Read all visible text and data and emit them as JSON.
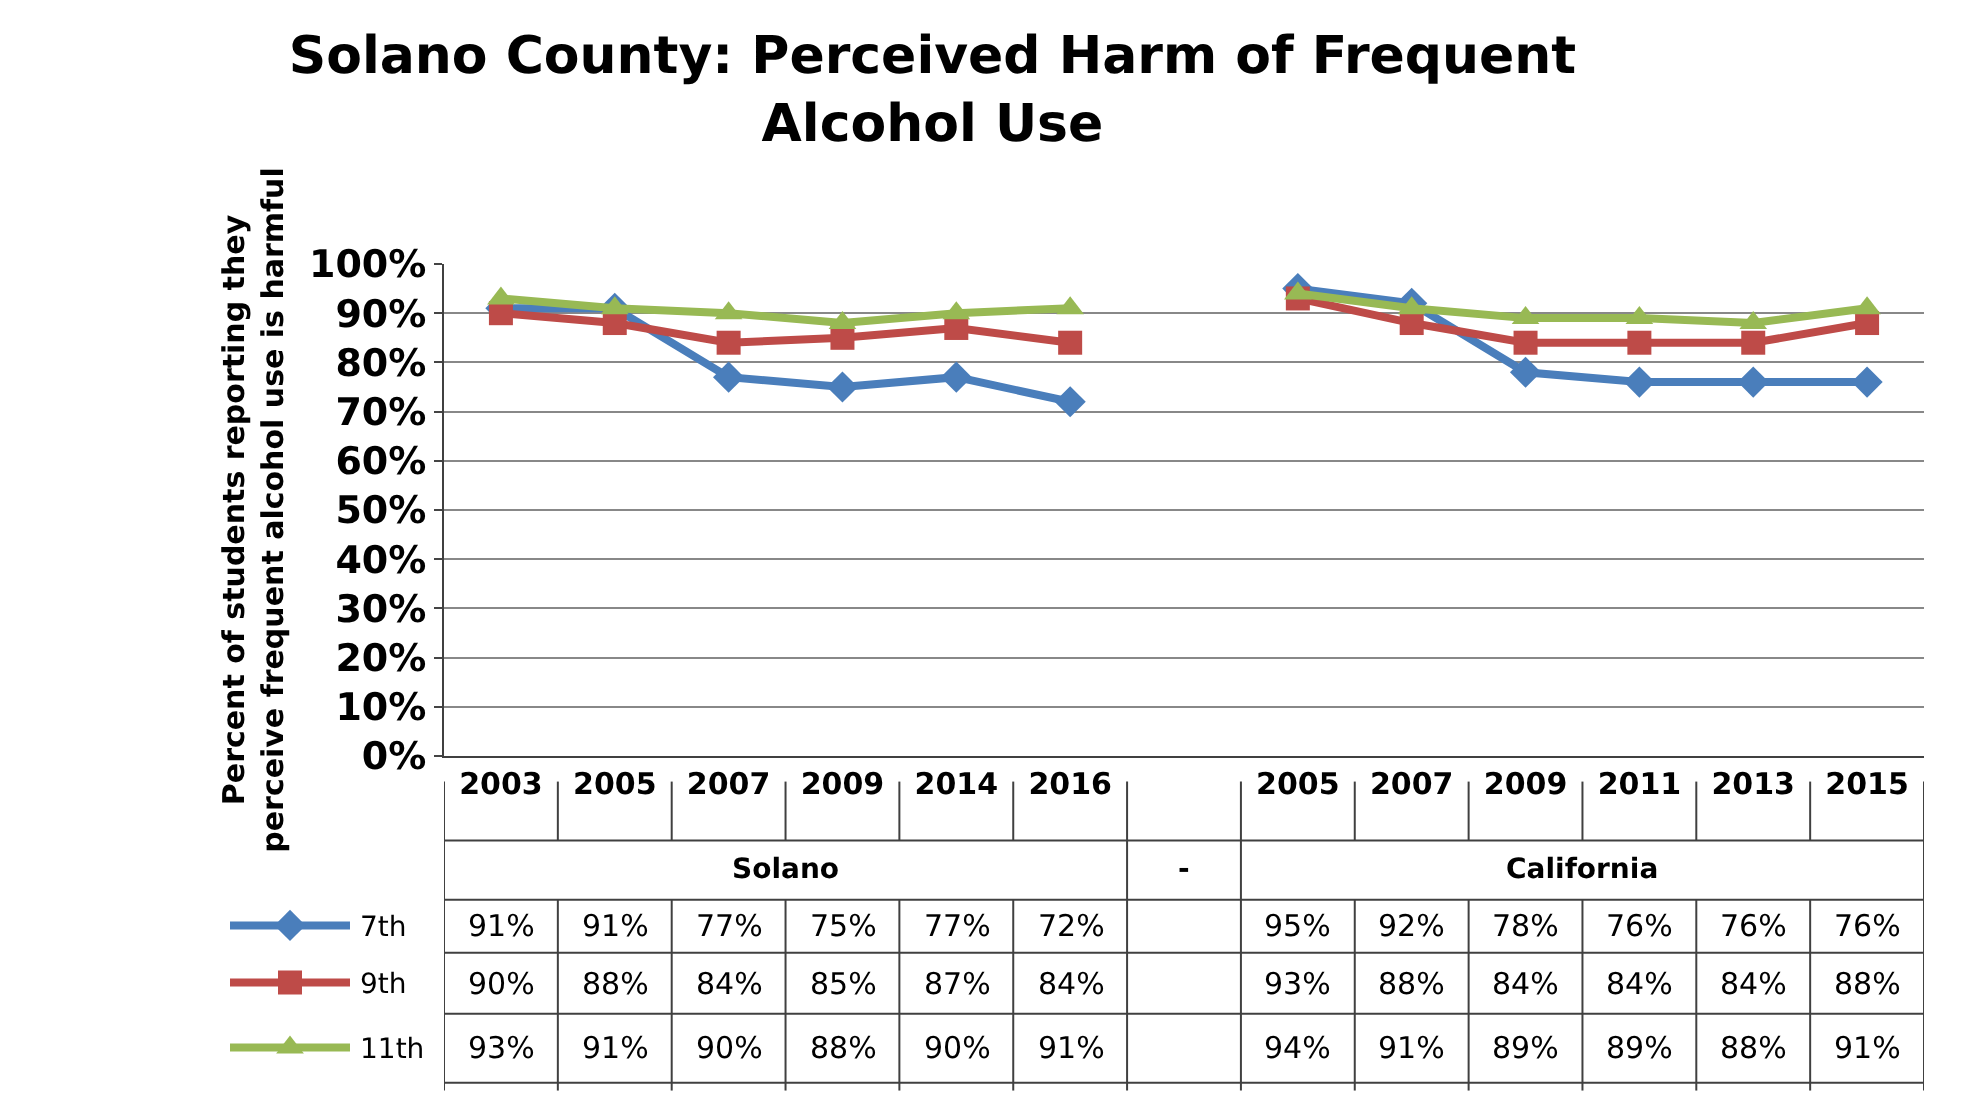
{
  "chart_data": {
    "type": "line",
    "title": "Solano County: Perceived Harm of Frequent Alcohol Use",
    "ylabel": "Percent of students reporting they perceive frequent alcohol use is harmful",
    "categories": [
      "2003",
      "2005",
      "2007",
      "2009",
      "2014",
      "2016",
      null,
      "2005",
      "2007",
      "2009",
      "2011",
      "2013",
      "2015"
    ],
    "annotations": [
      "Solano",
      "-",
      "California"
    ],
    "series": [
      {
        "name": "7th",
        "color": "#4a7ebb",
        "marker": "diamond",
        "values": [
          91,
          91,
          77,
          75,
          77,
          72,
          null,
          95,
          92,
          78,
          76,
          76,
          76
        ],
        "value_labels": [
          "91%",
          "91%",
          "77%",
          "75%",
          "77%",
          "72%",
          null,
          "95%",
          "92%",
          "78%",
          "76%",
          "76%",
          "76%"
        ]
      },
      {
        "name": "9th",
        "color": "#be4b48",
        "marker": "square",
        "values": [
          90,
          88,
          84,
          85,
          87,
          84,
          null,
          93,
          88,
          84,
          84,
          84,
          88
        ],
        "value_labels": [
          "90%",
          "88%",
          "84%",
          "85%",
          "87%",
          "84%",
          null,
          "93%",
          "88%",
          "84%",
          "84%",
          "84%",
          "88%"
        ]
      },
      {
        "name": "11th",
        "color": "#98b954",
        "marker": "triangle",
        "values": [
          93,
          91,
          90,
          88,
          90,
          91,
          null,
          94,
          91,
          89,
          89,
          88,
          91
        ],
        "value_labels": [
          "93%",
          "91%",
          "90%",
          "88%",
          "90%",
          "91%",
          null,
          "94%",
          "91%",
          "89%",
          "89%",
          "88%",
          "91%"
        ]
      }
    ],
    "ylim": [
      0,
      100
    ],
    "yticks": [
      {
        "value": 0,
        "label": "0%"
      },
      {
        "value": 10,
        "label": "10%"
      },
      {
        "value": 20,
        "label": "20%"
      },
      {
        "value": 30,
        "label": "30%"
      },
      {
        "value": 40,
        "label": "40%"
      },
      {
        "value": 50,
        "label": "50%"
      },
      {
        "value": 60,
        "label": "60%"
      },
      {
        "value": 70,
        "label": "70%"
      },
      {
        "value": 80,
        "label": "80%"
      },
      {
        "value": 90,
        "label": "90%"
      },
      {
        "value": 100,
        "label": "100%"
      }
    ],
    "grid": "y",
    "legend": "bottom left",
    "line_style": "solid"
  }
}
